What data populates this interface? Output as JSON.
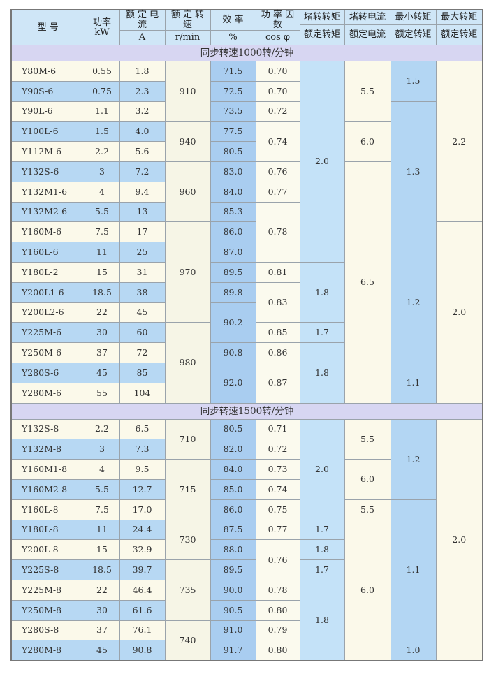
{
  "header": {
    "model": "型 号",
    "power": "功率",
    "power_unit": "kW",
    "current": "额 定 电 流",
    "current_unit": "A",
    "speed": "额 定 转 速",
    "speed_unit": "r/min",
    "efficiency": "效 率",
    "efficiency_unit": "%",
    "pf": "功 率 因 数",
    "pf_unit": "cos φ",
    "stall_torque": "堵转转矩",
    "stall_torque_den": "额定转矩",
    "stall_current": "堵转电流",
    "stall_current_den": "额定电流",
    "min_torque": "最小转矩",
    "min_torque_den": "额定转矩",
    "max_torque": "最大转矩",
    "max_torque_den": "额定转矩"
  },
  "sections": [
    {
      "title": "同步转速1000转/分钟",
      "models": [
        "Y80M-6",
        "Y90S-6",
        "Y90L-6",
        "Y100L-6",
        "Y112M-6",
        "Y132S-6",
        "Y132M1-6",
        "Y132M2-6",
        "Y160M-6",
        "Y160L-6",
        "Y180L-2",
        "Y200L1-6",
        "Y200L2-6",
        "Y225M-6",
        "Y250M-6",
        "Y280S-6",
        "Y280M-6"
      ],
      "power": [
        "0.55",
        "0.75",
        "1.1",
        "1.5",
        "2.2",
        "3",
        "4",
        "5.5",
        "7.5",
        "11",
        "15",
        "18.5",
        "22",
        "30",
        "37",
        "45",
        "55"
      ],
      "current": [
        "1.8",
        "2.3",
        "3.2",
        "4.0",
        "5.6",
        "7.2",
        "9.4",
        "13",
        "17",
        "25",
        "31",
        "38",
        "45",
        "60",
        "72",
        "85",
        "104"
      ],
      "speed": [
        {
          "v": "910",
          "n": 3
        },
        {
          "v": "940",
          "n": 2
        },
        {
          "v": "960",
          "n": 3
        },
        {
          "v": "970",
          "n": 5
        },
        {
          "v": "980",
          "n": 4
        }
      ],
      "efficiency": [
        {
          "v": "71.5",
          "n": 1
        },
        {
          "v": "72.5",
          "n": 1
        },
        {
          "v": "73.5",
          "n": 1
        },
        {
          "v": "77.5",
          "n": 1
        },
        {
          "v": "80.5",
          "n": 1
        },
        {
          "v": "83.0",
          "n": 1
        },
        {
          "v": "84.0",
          "n": 1
        },
        {
          "v": "85.3",
          "n": 1
        },
        {
          "v": "86.0",
          "n": 1
        },
        {
          "v": "87.0",
          "n": 1
        },
        {
          "v": "89.5",
          "n": 1
        },
        {
          "v": "89.8",
          "n": 1
        },
        {
          "v": "90.2",
          "n": 2
        },
        {
          "v": "90.8",
          "n": 1
        },
        {
          "v": "92.0",
          "n": 2
        }
      ],
      "pf": [
        {
          "v": "0.70",
          "n": 1
        },
        {
          "v": "0.70",
          "n": 1
        },
        {
          "v": "0.72",
          "n": 1
        },
        {
          "v": "0.74",
          "n": 2
        },
        {
          "v": "0.76",
          "n": 1
        },
        {
          "v": "0.77",
          "n": 1
        },
        {
          "v": "0.78",
          "n": 3
        },
        {
          "v": "0.81",
          "n": 1
        },
        {
          "v": "0.83",
          "n": 2
        },
        {
          "v": "0.85",
          "n": 1
        },
        {
          "v": "0.86",
          "n": 1
        },
        {
          "v": "0.87",
          "n": 2
        }
      ],
      "stall_torque": [
        {
          "v": "2.0",
          "n": 10
        },
        {
          "v": "1.8",
          "n": 3
        },
        {
          "v": "1.7",
          "n": 1
        },
        {
          "v": "1.8",
          "n": 3
        }
      ],
      "stall_current": [
        {
          "v": "5.5",
          "n": 3
        },
        {
          "v": "6.0",
          "n": 2
        },
        {
          "v": "6.5",
          "n": 12
        }
      ],
      "min_torque": [
        {
          "v": "1.5",
          "n": 2
        },
        {
          "v": "1.3",
          "n": 7
        },
        {
          "v": "1.2",
          "n": 6
        },
        {
          "v": "1.1",
          "n": 2
        }
      ],
      "max_torque": [
        {
          "v": "2.2",
          "n": 8
        },
        {
          "v": "2.0",
          "n": 9
        }
      ]
    },
    {
      "title": "同步转速1500转/分钟",
      "models": [
        "Y132S-8",
        "Y132M-8",
        "Y160M1-8",
        "Y160M2-8",
        "Y160L-8",
        "Y180L-8",
        "Y200L-8",
        "Y225S-8",
        "Y225M-8",
        "Y250M-8",
        "Y280S-8",
        "Y280M-8"
      ],
      "power": [
        "2.2",
        "3",
        "4",
        "5.5",
        "7.5",
        "11",
        "15",
        "18.5",
        "22",
        "30",
        "37",
        "45"
      ],
      "current": [
        "6.5",
        "7.3",
        "9.5",
        "12.7",
        "17.0",
        "24.4",
        "32.9",
        "39.7",
        "46.4",
        "61.6",
        "76.1",
        "90.8"
      ],
      "speed": [
        {
          "v": "710",
          "n": 2
        },
        {
          "v": "715",
          "n": 3
        },
        {
          "v": "730",
          "n": 2
        },
        {
          "v": "735",
          "n": 3
        },
        {
          "v": "740",
          "n": 2
        }
      ],
      "efficiency": [
        {
          "v": "80.5",
          "n": 1
        },
        {
          "v": "82.0",
          "n": 1
        },
        {
          "v": "84.0",
          "n": 1
        },
        {
          "v": "85.0",
          "n": 1
        },
        {
          "v": "86.0",
          "n": 1
        },
        {
          "v": "87.5",
          "n": 1
        },
        {
          "v": "88.0",
          "n": 1
        },
        {
          "v": "89.5",
          "n": 1
        },
        {
          "v": "90.0",
          "n": 1
        },
        {
          "v": "90.5",
          "n": 1
        },
        {
          "v": "91.0",
          "n": 1
        },
        {
          "v": "91.7",
          "n": 1
        }
      ],
      "pf": [
        {
          "v": "0.71",
          "n": 1
        },
        {
          "v": "0.72",
          "n": 1
        },
        {
          "v": "0.73",
          "n": 1
        },
        {
          "v": "0.74",
          "n": 1
        },
        {
          "v": "0.75",
          "n": 1
        },
        {
          "v": "0.77",
          "n": 1
        },
        {
          "v": "0.76",
          "n": 2
        },
        {
          "v": "0.78",
          "n": 1
        },
        {
          "v": "0.80",
          "n": 1
        },
        {
          "v": "0.79",
          "n": 1
        },
        {
          "v": "0.80",
          "n": 1
        }
      ],
      "stall_torque": [
        {
          "v": "2.0",
          "n": 5
        },
        {
          "v": "1.7",
          "n": 1
        },
        {
          "v": "1.8",
          "n": 1
        },
        {
          "v": "1.7",
          "n": 1
        },
        {
          "v": "1.8",
          "n": 4
        }
      ],
      "stall_current": [
        {
          "v": "5.5",
          "n": 2
        },
        {
          "v": "6.0",
          "n": 2
        },
        {
          "v": "5.5",
          "n": 1
        },
        {
          "v": "6.0",
          "n": 7
        }
      ],
      "min_torque": [
        {
          "v": "1.2",
          "n": 4
        },
        {
          "v": "1.1",
          "n": 7
        },
        {
          "v": "1.0",
          "n": 1
        }
      ],
      "max_torque": [
        {
          "v": "2.0",
          "n": 12
        }
      ]
    }
  ]
}
